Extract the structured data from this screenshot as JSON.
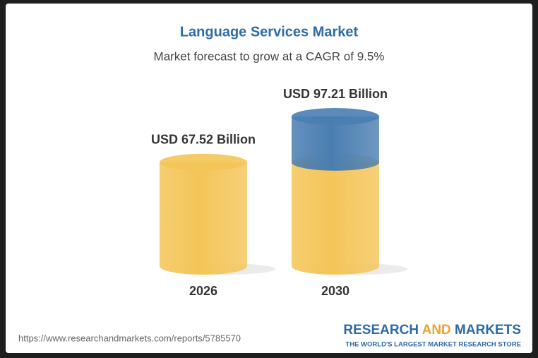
{
  "chart_data": {
    "type": "cylinder-bar",
    "title": "Language Services Market",
    "subtitle": "Market forecast to grow at a CAGR of 9.5%",
    "categories": [
      "2026",
      "2030"
    ],
    "values": [
      67.52,
      97.21
    ],
    "value_labels": [
      "USD 67.52 Billion",
      "USD 97.21 Billion"
    ],
    "color": "#f4c558",
    "growth_color": "#4a7eb1"
  },
  "footer": {
    "source": "https://www.researchandmarkets.com/reports/5785570",
    "logo": {
      "research": "RESEARCH",
      "and": "AND",
      "markets": "MARKETS",
      "tagline": "THE WORLD'S LARGEST MARKET RESEARCH STORE"
    }
  }
}
